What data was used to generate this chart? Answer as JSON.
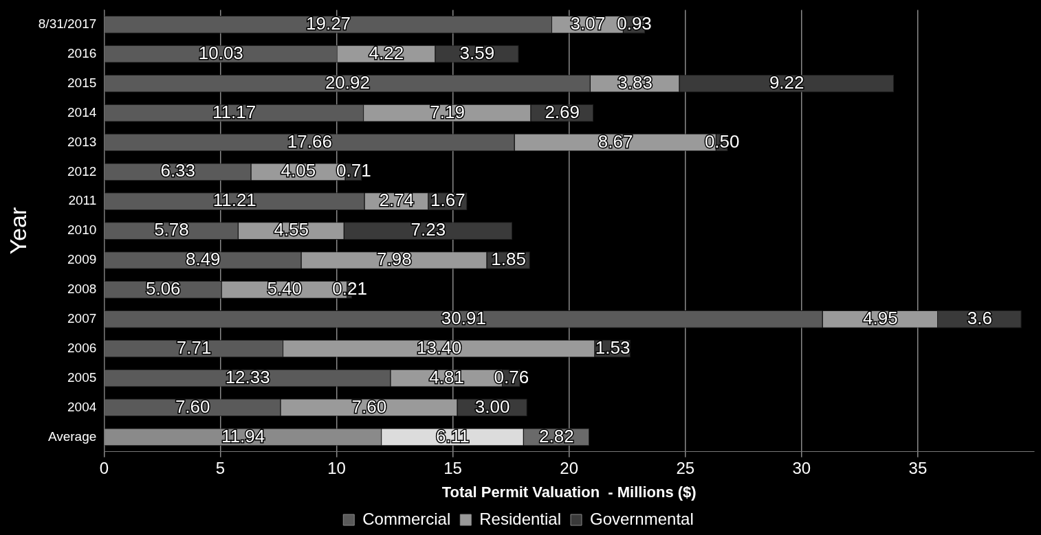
{
  "chart_data": {
    "type": "bar",
    "orientation": "horizontal",
    "stacked": true,
    "xlabel": "Total Permit Valuation  - Millions ($)",
    "ylabel": "Year",
    "categories": [
      "8/31/2017",
      "2016",
      "2015",
      "2014",
      "2013",
      "2012",
      "2011",
      "2010",
      "2009",
      "2008",
      "2007",
      "2006",
      "2005",
      "2004",
      "Average"
    ],
    "series": [
      {
        "name": "Commercial",
        "color": "#5a5a5a",
        "colors": [
          "#5a5a5a",
          "#5a5a5a",
          "#5a5a5a",
          "#5a5a5a",
          "#5a5a5a",
          "#5a5a5a",
          "#5a5a5a",
          "#5a5a5a",
          "#5a5a5a",
          "#5a5a5a",
          "#5a5a5a",
          "#5a5a5a",
          "#5a5a5a",
          "#5a5a5a",
          "#8a8a8a"
        ],
        "values": [
          19.27,
          10.03,
          20.92,
          11.17,
          17.66,
          6.33,
          11.21,
          5.78,
          8.49,
          5.06,
          30.91,
          7.71,
          12.33,
          7.6,
          11.94
        ],
        "value_labels": [
          "19.27",
          "10.03",
          "20.92",
          "11.17",
          "17.66",
          "6.33",
          "11.21",
          "5.78",
          "8.49",
          "5.06",
          "30.91",
          "7.71",
          "12.33",
          "7.60",
          "11.94"
        ]
      },
      {
        "name": "Residential",
        "color": "#9a9a9a",
        "colors": [
          "#9a9a9a",
          "#9a9a9a",
          "#9a9a9a",
          "#9a9a9a",
          "#9a9a9a",
          "#9a9a9a",
          "#9a9a9a",
          "#9a9a9a",
          "#9a9a9a",
          "#9a9a9a",
          "#9a9a9a",
          "#9a9a9a",
          "#9a9a9a",
          "#9a9a9a",
          "#dcdcdc"
        ],
        "values": [
          3.07,
          4.22,
          3.83,
          7.19,
          8.67,
          4.05,
          2.74,
          4.55,
          7.98,
          5.4,
          4.95,
          13.4,
          4.81,
          7.6,
          6.11
        ],
        "value_labels": [
          "3.07",
          "4.22",
          "3.83",
          "7.19",
          "8.67",
          "4.05",
          "2.74",
          "4.55",
          "7.98",
          "5.40",
          "4.95",
          "13.40",
          "4.81",
          "7.60",
          "6.11"
        ]
      },
      {
        "name": "Governmental",
        "color": "#3a3a3a",
        "colors": [
          "#3a3a3a",
          "#3a3a3a",
          "#3a3a3a",
          "#3a3a3a",
          "#3a3a3a",
          "#3a3a3a",
          "#3a3a3a",
          "#3a3a3a",
          "#3a3a3a",
          "#3a3a3a",
          "#3a3a3a",
          "#3a3a3a",
          "#3a3a3a",
          "#3a3a3a",
          "#6a6a6a"
        ],
        "values": [
          0.93,
          3.59,
          9.22,
          2.69,
          0.5,
          0.71,
          1.67,
          7.23,
          1.85,
          0.21,
          3.6,
          1.53,
          0.76,
          3.0,
          2.82
        ],
        "value_labels": [
          "0.93",
          "3.59",
          "9.22",
          "2.69",
          "0.50",
          "0.71",
          "1.67",
          "7.23",
          "1.85",
          "0.21",
          "3.6",
          "1.53",
          "0.76",
          "3.00",
          "2.82"
        ]
      }
    ],
    "xlim": [
      0,
      40
    ],
    "xticks": [
      0,
      5,
      10,
      15,
      20,
      25,
      30,
      35
    ],
    "grid": "x",
    "legend": "bottom"
  }
}
